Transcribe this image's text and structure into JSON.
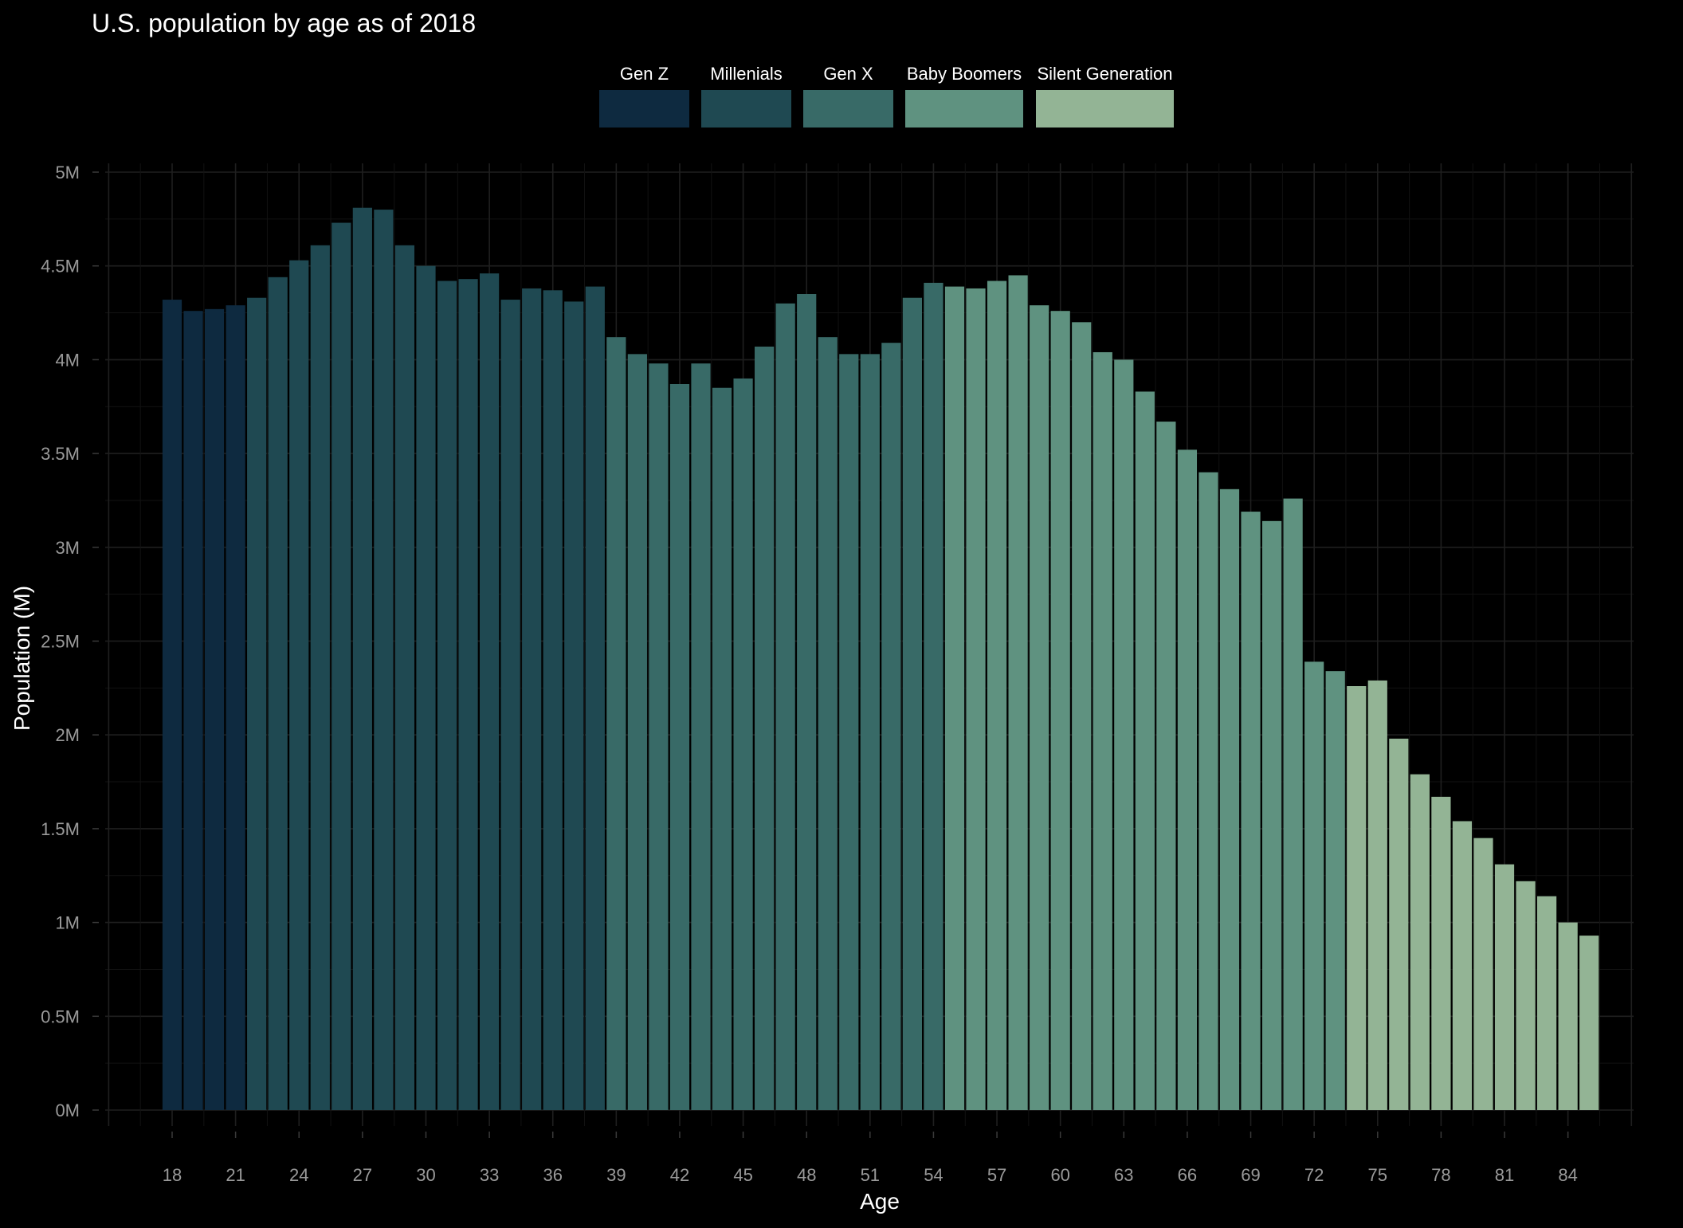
{
  "chart_data": {
    "type": "bar",
    "title": "U.S. population by age as of 2018",
    "xlabel": "Age",
    "ylabel": "Population (M)",
    "ylim": [
      0,
      5000000
    ],
    "y_ticks": [
      0,
      500000,
      1000000,
      1500000,
      2000000,
      2500000,
      3000000,
      3500000,
      4000000,
      4500000,
      5000000
    ],
    "y_tick_labels": [
      "0M",
      "0.5M",
      "1M",
      "1.5M",
      "2M",
      "2.5M",
      "3M",
      "3.5M",
      "4M",
      "4.5M",
      "5M"
    ],
    "x_ticks": [
      18,
      21,
      24,
      27,
      30,
      33,
      36,
      39,
      42,
      45,
      48,
      51,
      54,
      57,
      60,
      63,
      66,
      69,
      72,
      75,
      78,
      81,
      84
    ],
    "xlim": [
      15,
      87
    ],
    "grid": true,
    "legend_position": "top",
    "background": "#000000",
    "legend": [
      {
        "name": "Gen Z",
        "color": "#0e2a40"
      },
      {
        "name": "Millenials",
        "color": "#1f4952"
      },
      {
        "name": "Gen X",
        "color": "#386a67"
      },
      {
        "name": "Baby Boomers",
        "color": "#5f9280"
      },
      {
        "name": "Silent Generation",
        "color": "#93b495"
      }
    ],
    "ages": [
      18,
      19,
      20,
      21,
      22,
      23,
      24,
      25,
      26,
      27,
      28,
      29,
      30,
      31,
      32,
      33,
      34,
      35,
      36,
      37,
      38,
      39,
      40,
      41,
      42,
      43,
      44,
      45,
      46,
      47,
      48,
      49,
      50,
      51,
      52,
      53,
      54,
      55,
      56,
      57,
      58,
      59,
      60,
      61,
      62,
      63,
      64,
      65,
      66,
      67,
      68,
      69,
      70,
      71,
      72,
      73,
      74,
      75,
      76,
      77,
      78,
      79,
      80,
      81,
      82,
      83,
      84,
      85
    ],
    "values": [
      4320000,
      4260000,
      4270000,
      4290000,
      4330000,
      4440000,
      4530000,
      4610000,
      4730000,
      4810000,
      4800000,
      4610000,
      4500000,
      4420000,
      4430000,
      4460000,
      4320000,
      4380000,
      4370000,
      4310000,
      4390000,
      4120000,
      4030000,
      3980000,
      3870000,
      3980000,
      3850000,
      3900000,
      4070000,
      4300000,
      4350000,
      4120000,
      4030000,
      4030000,
      4090000,
      4330000,
      4410000,
      4390000,
      4380000,
      4420000,
      4450000,
      4290000,
      4260000,
      4200000,
      4040000,
      4000000,
      3830000,
      3670000,
      3520000,
      3400000,
      3310000,
      3190000,
      3140000,
      3260000,
      2390000,
      2340000,
      2260000,
      2290000,
      1980000,
      1790000,
      1670000,
      1540000,
      1450000,
      1310000,
      1220000,
      1140000,
      1000000,
      930000
    ],
    "generation": [
      "Gen Z",
      "Gen Z",
      "Gen Z",
      "Gen Z",
      "Millenials",
      "Millenials",
      "Millenials",
      "Millenials",
      "Millenials",
      "Millenials",
      "Millenials",
      "Millenials",
      "Millenials",
      "Millenials",
      "Millenials",
      "Millenials",
      "Millenials",
      "Millenials",
      "Millenials",
      "Millenials",
      "Millenials",
      "Gen X",
      "Gen X",
      "Gen X",
      "Gen X",
      "Gen X",
      "Gen X",
      "Gen X",
      "Gen X",
      "Gen X",
      "Gen X",
      "Gen X",
      "Gen X",
      "Gen X",
      "Gen X",
      "Gen X",
      "Gen X",
      "Baby Boomers",
      "Baby Boomers",
      "Baby Boomers",
      "Baby Boomers",
      "Baby Boomers",
      "Baby Boomers",
      "Baby Boomers",
      "Baby Boomers",
      "Baby Boomers",
      "Baby Boomers",
      "Baby Boomers",
      "Baby Boomers",
      "Baby Boomers",
      "Baby Boomers",
      "Baby Boomers",
      "Baby Boomers",
      "Baby Boomers",
      "Baby Boomers",
      "Baby Boomers",
      "Silent Generation",
      "Silent Generation",
      "Silent Generation",
      "Silent Generation",
      "Silent Generation",
      "Silent Generation",
      "Silent Generation",
      "Silent Generation",
      "Silent Generation",
      "Silent Generation",
      "Silent Generation",
      "Silent Generation"
    ]
  }
}
